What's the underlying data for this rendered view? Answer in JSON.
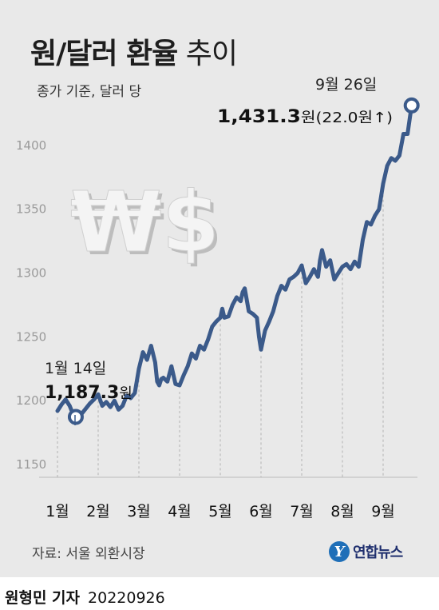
{
  "title": {
    "bold": "원/달러 환율",
    "light": " 추이"
  },
  "subtitle": "종가 기준, 달러 당",
  "source": "자료: 서울 외환시장",
  "logo": {
    "mark": "Y",
    "text": "연합뉴스"
  },
  "byline": {
    "reporter": "원형민 기자",
    "date": "20220926"
  },
  "annotations": {
    "start": {
      "date_label": "1월 14일",
      "value": "1,187.3",
      "unit": "원"
    },
    "end": {
      "date_label": "9월 26일",
      "value": "1,431.3",
      "unit": "원",
      "change": "(22.0원↑)"
    }
  },
  "chart_data": {
    "type": "line",
    "title": "원/달러 환율 추이",
    "subtitle": "종가 기준, 달러 당",
    "ylim": [
      1140,
      1440
    ],
    "yticks": [
      1150,
      1200,
      1250,
      1300,
      1350,
      1400
    ],
    "month_ticks": [
      {
        "label": "1월",
        "x": 1
      },
      {
        "label": "2월",
        "x": 2
      },
      {
        "label": "3월",
        "x": 3
      },
      {
        "label": "4월",
        "x": 4
      },
      {
        "label": "5월",
        "x": 5
      },
      {
        "label": "6월",
        "x": 6
      },
      {
        "label": "7월",
        "x": 7
      },
      {
        "label": "8월",
        "x": 8
      },
      {
        "label": "9월",
        "x": 9
      }
    ],
    "grid": "vertical-dashed",
    "series": [
      {
        "x": [
          1.0,
          1.1,
          1.2,
          1.3,
          1.4,
          1.45,
          1.6,
          1.8,
          1.9,
          2.0,
          2.1,
          2.2,
          2.3,
          2.4,
          2.5,
          2.6,
          2.7,
          2.8,
          2.9,
          3.0,
          3.1,
          3.2,
          3.3,
          3.4,
          3.45,
          3.5,
          3.55,
          3.6,
          3.7,
          3.8,
          3.9,
          4.0,
          4.1,
          4.2,
          4.3,
          4.4,
          4.5,
          4.6,
          4.7,
          4.8,
          4.9,
          5.0,
          5.05,
          5.1,
          5.2,
          5.3,
          5.4,
          5.5,
          5.55,
          5.6,
          5.7,
          5.8,
          5.9,
          5.95,
          6.0,
          6.1,
          6.2,
          6.3,
          6.4,
          6.5,
          6.6,
          6.7,
          6.8,
          6.9,
          7.0,
          7.1,
          7.2,
          7.3,
          7.4,
          7.45,
          7.5,
          7.6,
          7.7,
          7.8,
          7.9,
          8.0,
          8.1,
          8.2,
          8.3,
          8.4,
          8.5,
          8.6,
          8.7,
          8.8,
          8.9,
          9.0,
          9.1,
          9.2,
          9.3,
          9.4,
          9.5,
          9.6,
          9.7
        ],
        "values": [
          1192,
          1197,
          1201,
          1196,
          1188,
          1187.3,
          1190,
          1198,
          1201,
          1205,
          1196,
          1199,
          1195,
          1200,
          1193,
          1196,
          1204,
          1202,
          1206,
          1225,
          1238,
          1232,
          1243,
          1230,
          1215,
          1212,
          1217,
          1218,
          1215,
          1227,
          1213,
          1212,
          1220,
          1227,
          1237,
          1233,
          1243,
          1240,
          1248,
          1258,
          1262,
          1265,
          1272,
          1265,
          1266,
          1275,
          1281,
          1278,
          1285,
          1288,
          1270,
          1268,
          1265,
          1250,
          1240,
          1255,
          1262,
          1270,
          1282,
          1290,
          1287,
          1295,
          1297,
          1300,
          1306,
          1292,
          1297,
          1303,
          1297,
          1310,
          1318,
          1305,
          1310,
          1295,
          1300,
          1305,
          1307,
          1303,
          1309,
          1305,
          1326,
          1340,
          1338,
          1345,
          1350,
          1370,
          1384,
          1390,
          1388,
          1392,
          1409,
          1409,
          1431.3
        ]
      }
    ]
  }
}
